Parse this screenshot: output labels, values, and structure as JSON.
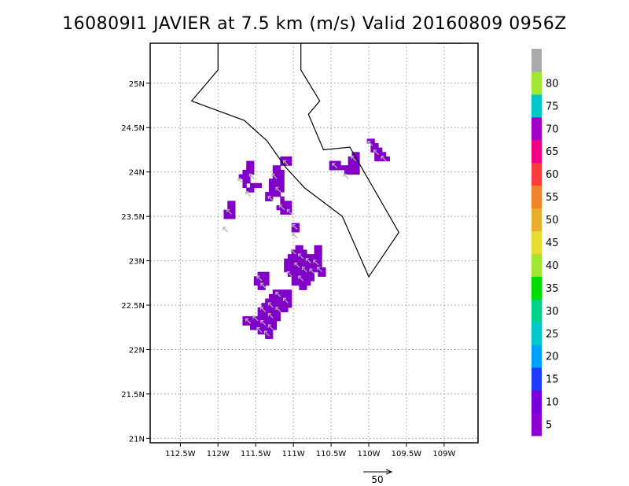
{
  "title": "160809I1 JAVIER at 7.5 km (m/s) Valid 20160809 0956Z",
  "map": {
    "lon_range": [
      -112.9,
      -108.55
    ],
    "lat_range": [
      20.95,
      25.45
    ],
    "lon_ticks": [
      {
        "value": -112.5,
        "label": "112.5W"
      },
      {
        "value": -112.0,
        "label": "112W"
      },
      {
        "value": -111.5,
        "label": "111.5W"
      },
      {
        "value": -111.0,
        "label": "111W"
      },
      {
        "value": -110.5,
        "label": "110.5W"
      },
      {
        "value": -110.0,
        "label": "110W"
      },
      {
        "value": -109.5,
        "label": "109.5W"
      },
      {
        "value": -109.0,
        "label": "109W"
      }
    ],
    "lat_ticks": [
      {
        "value": 25.0,
        "label": "25N"
      },
      {
        "value": 24.5,
        "label": "24.5N"
      },
      {
        "value": 24.0,
        "label": "24N"
      },
      {
        "value": 23.5,
        "label": "23.5N"
      },
      {
        "value": 23.0,
        "label": "23N"
      },
      {
        "value": 22.5,
        "label": "22.5N"
      },
      {
        "value": 22.0,
        "label": "22N"
      },
      {
        "value": 21.5,
        "label": "21.5N"
      },
      {
        "value": 21.0,
        "label": "21N"
      }
    ],
    "grid": "dotted",
    "coastlines": [
      [
        [
          -112.0,
          25.45
        ],
        [
          -112.0,
          25.15
        ],
        [
          -112.35,
          24.8
        ],
        [
          -111.65,
          24.58
        ],
        [
          -111.35,
          24.35
        ],
        [
          -111.1,
          24.05
        ],
        [
          -110.85,
          23.82
        ],
        [
          -110.35,
          23.5
        ],
        [
          -110.0,
          22.82
        ],
        [
          -109.6,
          23.32
        ],
        [
          -110.25,
          24.28
        ],
        [
          -110.6,
          24.25
        ],
        [
          -110.8,
          24.65
        ],
        [
          -110.65,
          24.8
        ],
        [
          -110.9,
          25.15
        ],
        [
          -110.9,
          25.45
        ]
      ],
      [
        [
          -109.1,
          25.45
        ],
        [
          -108.75,
          25.45
        ]
      ]
    ]
  },
  "wind_cells": {
    "cell_deg": 0.05,
    "color": "#8000c8",
    "cells": [
      [
        -111.85,
        23.65
      ],
      [
        -111.8,
        23.65
      ],
      [
        -111.85,
        23.6
      ],
      [
        -111.8,
        23.6
      ],
      [
        -111.9,
        23.55
      ],
      [
        -111.85,
        23.55
      ],
      [
        -111.8,
        23.55
      ],
      [
        -111.9,
        23.5
      ],
      [
        -111.85,
        23.5
      ],
      [
        -111.8,
        23.5
      ],
      [
        -111.6,
        24.1
      ],
      [
        -111.55,
        24.1
      ],
      [
        -111.6,
        24.05
      ],
      [
        -111.55,
        24.05
      ],
      [
        -111.65,
        24.0
      ],
      [
        -111.6,
        24.0
      ],
      [
        -111.55,
        24.0
      ],
      [
        -111.7,
        23.95
      ],
      [
        -111.65,
        23.95
      ],
      [
        -111.6,
        23.95
      ],
      [
        -111.65,
        23.9
      ],
      [
        -111.6,
        23.9
      ],
      [
        -111.55,
        23.85
      ],
      [
        -111.5,
        23.85
      ],
      [
        -111.45,
        23.85
      ],
      [
        -111.65,
        23.85
      ],
      [
        -111.6,
        23.8
      ],
      [
        -111.55,
        23.8
      ],
      [
        -111.25,
        24.05
      ],
      [
        -111.2,
        24.05
      ],
      [
        -111.25,
        24.0
      ],
      [
        -111.2,
        24.0
      ],
      [
        -111.15,
        24.0
      ],
      [
        -111.25,
        23.95
      ],
      [
        -111.2,
        23.95
      ],
      [
        -111.15,
        23.95
      ],
      [
        -111.3,
        23.9
      ],
      [
        -111.25,
        23.9
      ],
      [
        -111.2,
        23.9
      ],
      [
        -111.15,
        23.9
      ],
      [
        -111.3,
        23.85
      ],
      [
        -111.25,
        23.85
      ],
      [
        -111.2,
        23.85
      ],
      [
        -111.15,
        23.85
      ],
      [
        -111.3,
        23.8
      ],
      [
        -111.25,
        23.8
      ],
      [
        -111.2,
        23.8
      ],
      [
        -111.15,
        23.8
      ],
      [
        -111.35,
        23.75
      ],
      [
        -111.3,
        23.75
      ],
      [
        -111.25,
        23.75
      ],
      [
        -111.2,
        23.75
      ],
      [
        -111.35,
        23.7
      ],
      [
        -111.3,
        23.7
      ],
      [
        -111.15,
        23.7
      ],
      [
        -111.15,
        23.65
      ],
      [
        -111.1,
        23.65
      ],
      [
        -111.05,
        23.65
      ],
      [
        -111.2,
        23.6
      ],
      [
        -111.15,
        23.6
      ],
      [
        -111.1,
        23.6
      ],
      [
        -111.05,
        23.6
      ],
      [
        -111.15,
        23.55
      ],
      [
        -111.1,
        23.55
      ],
      [
        -111.05,
        23.55
      ],
      [
        -111.15,
        24.15
      ],
      [
        -111.1,
        24.15
      ],
      [
        -111.05,
        24.15
      ],
      [
        -111.15,
        24.1
      ],
      [
        -111.1,
        24.1
      ],
      [
        -111.05,
        24.1
      ],
      [
        -111.0,
        23.4
      ],
      [
        -110.95,
        23.4
      ],
      [
        -111.0,
        23.35
      ],
      [
        -110.95,
        23.35
      ],
      [
        -110.5,
        24.1
      ],
      [
        -110.45,
        24.1
      ],
      [
        -110.4,
        24.1
      ],
      [
        -110.5,
        24.05
      ],
      [
        -110.45,
        24.05
      ],
      [
        -110.4,
        24.05
      ],
      [
        -110.35,
        24.05
      ],
      [
        -110.2,
        24.2
      ],
      [
        -110.15,
        24.2
      ],
      [
        -110.25,
        24.15
      ],
      [
        -110.2,
        24.15
      ],
      [
        -110.15,
        24.15
      ],
      [
        -110.25,
        24.1
      ],
      [
        -110.2,
        24.1
      ],
      [
        -110.15,
        24.1
      ],
      [
        -110.3,
        24.05
      ],
      [
        -110.25,
        24.05
      ],
      [
        -110.2,
        24.05
      ],
      [
        -110.15,
        24.05
      ],
      [
        -110.3,
        24.0
      ],
      [
        -110.25,
        24.0
      ],
      [
        -110.2,
        24.0
      ],
      [
        -110.15,
        24.0
      ],
      [
        -110.0,
        24.35
      ],
      [
        -109.95,
        24.35
      ],
      [
        -109.95,
        24.3
      ],
      [
        -109.9,
        24.3
      ],
      [
        -109.95,
        24.25
      ],
      [
        -109.9,
        24.25
      ],
      [
        -109.85,
        24.25
      ],
      [
        -109.9,
        24.2
      ],
      [
        -109.85,
        24.2
      ],
      [
        -109.8,
        24.2
      ],
      [
        -109.9,
        24.15
      ],
      [
        -109.85,
        24.15
      ],
      [
        -109.8,
        24.15
      ],
      [
        -109.75,
        24.15
      ],
      [
        -110.95,
        23.15
      ],
      [
        -110.9,
        23.15
      ],
      [
        -110.7,
        23.15
      ],
      [
        -110.65,
        23.15
      ],
      [
        -111.0,
        23.1
      ],
      [
        -110.95,
        23.1
      ],
      [
        -110.9,
        23.1
      ],
      [
        -110.85,
        23.1
      ],
      [
        -110.7,
        23.1
      ],
      [
        -110.65,
        23.1
      ],
      [
        -111.05,
        23.05
      ],
      [
        -111.0,
        23.05
      ],
      [
        -110.95,
        23.05
      ],
      [
        -110.9,
        23.05
      ],
      [
        -110.85,
        23.05
      ],
      [
        -110.8,
        23.05
      ],
      [
        -110.75,
        23.05
      ],
      [
        -110.7,
        23.05
      ],
      [
        -110.65,
        23.05
      ],
      [
        -111.1,
        23.0
      ],
      [
        -111.05,
        23.0
      ],
      [
        -111.0,
        23.0
      ],
      [
        -110.95,
        23.0
      ],
      [
        -110.9,
        23.0
      ],
      [
        -110.85,
        23.0
      ],
      [
        -110.8,
        23.0
      ],
      [
        -110.75,
        23.0
      ],
      [
        -110.7,
        23.0
      ],
      [
        -110.65,
        23.0
      ],
      [
        -111.1,
        22.95
      ],
      [
        -111.05,
        22.95
      ],
      [
        -111.0,
        22.95
      ],
      [
        -110.95,
        22.95
      ],
      [
        -110.9,
        22.95
      ],
      [
        -110.85,
        22.95
      ],
      [
        -110.8,
        22.95
      ],
      [
        -110.75,
        22.95
      ],
      [
        -110.7,
        22.95
      ],
      [
        -110.65,
        22.95
      ],
      [
        -111.1,
        22.9
      ],
      [
        -111.05,
        22.9
      ],
      [
        -111.0,
        22.9
      ],
      [
        -110.95,
        22.9
      ],
      [
        -110.9,
        22.9
      ],
      [
        -110.85,
        22.9
      ],
      [
        -110.8,
        22.9
      ],
      [
        -110.75,
        22.9
      ],
      [
        -110.7,
        22.9
      ],
      [
        -110.65,
        22.9
      ],
      [
        -110.6,
        22.9
      ],
      [
        -111.05,
        22.85
      ],
      [
        -111.0,
        22.85
      ],
      [
        -110.95,
        22.85
      ],
      [
        -110.9,
        22.85
      ],
      [
        -110.85,
        22.85
      ],
      [
        -110.8,
        22.85
      ],
      [
        -110.75,
        22.85
      ],
      [
        -110.65,
        22.85
      ],
      [
        -110.6,
        22.85
      ],
      [
        -111.0,
        22.8
      ],
      [
        -110.95,
        22.8
      ],
      [
        -110.9,
        22.8
      ],
      [
        -110.85,
        22.8
      ],
      [
        -110.8,
        22.8
      ],
      [
        -110.75,
        22.8
      ],
      [
        -111.0,
        22.75
      ],
      [
        -110.95,
        22.75
      ],
      [
        -110.9,
        22.75
      ],
      [
        -110.85,
        22.75
      ],
      [
        -110.8,
        22.75
      ],
      [
        -110.9,
        22.7
      ],
      [
        -110.85,
        22.7
      ],
      [
        -111.45,
        22.85
      ],
      [
        -111.4,
        22.85
      ],
      [
        -111.35,
        22.85
      ],
      [
        -111.5,
        22.8
      ],
      [
        -111.45,
        22.8
      ],
      [
        -111.4,
        22.8
      ],
      [
        -111.35,
        22.8
      ],
      [
        -111.5,
        22.75
      ],
      [
        -111.45,
        22.75
      ],
      [
        -111.4,
        22.75
      ],
      [
        -111.35,
        22.75
      ],
      [
        -111.45,
        22.7
      ],
      [
        -111.4,
        22.7
      ],
      [
        -111.25,
        22.65
      ],
      [
        -111.2,
        22.65
      ],
      [
        -111.15,
        22.65
      ],
      [
        -111.1,
        22.65
      ],
      [
        -111.05,
        22.65
      ],
      [
        -111.3,
        22.6
      ],
      [
        -111.25,
        22.6
      ],
      [
        -111.2,
        22.6
      ],
      [
        -111.15,
        22.6
      ],
      [
        -111.1,
        22.6
      ],
      [
        -111.05,
        22.6
      ],
      [
        -111.35,
        22.55
      ],
      [
        -111.3,
        22.55
      ],
      [
        -111.25,
        22.55
      ],
      [
        -111.2,
        22.55
      ],
      [
        -111.15,
        22.55
      ],
      [
        -111.1,
        22.55
      ],
      [
        -111.05,
        22.55
      ],
      [
        -111.4,
        22.5
      ],
      [
        -111.35,
        22.5
      ],
      [
        -111.3,
        22.5
      ],
      [
        -111.25,
        22.5
      ],
      [
        -111.2,
        22.5
      ],
      [
        -111.15,
        22.5
      ],
      [
        -111.1,
        22.5
      ],
      [
        -111.05,
        22.5
      ],
      [
        -111.45,
        22.45
      ],
      [
        -111.4,
        22.45
      ],
      [
        -111.35,
        22.45
      ],
      [
        -111.3,
        22.45
      ],
      [
        -111.25,
        22.45
      ],
      [
        -111.2,
        22.45
      ],
      [
        -111.15,
        22.45
      ],
      [
        -111.1,
        22.45
      ],
      [
        -111.45,
        22.4
      ],
      [
        -111.4,
        22.4
      ],
      [
        -111.35,
        22.4
      ],
      [
        -111.3,
        22.4
      ],
      [
        -111.25,
        22.4
      ],
      [
        -111.2,
        22.4
      ],
      [
        -111.65,
        22.35
      ],
      [
        -111.6,
        22.35
      ],
      [
        -111.55,
        22.35
      ],
      [
        -111.5,
        22.35
      ],
      [
        -111.45,
        22.35
      ],
      [
        -111.4,
        22.35
      ],
      [
        -111.35,
        22.35
      ],
      [
        -111.3,
        22.35
      ],
      [
        -111.25,
        22.35
      ],
      [
        -111.2,
        22.35
      ],
      [
        -111.65,
        22.3
      ],
      [
        -111.6,
        22.3
      ],
      [
        -111.55,
        22.3
      ],
      [
        -111.5,
        22.3
      ],
      [
        -111.45,
        22.3
      ],
      [
        -111.4,
        22.3
      ],
      [
        -111.35,
        22.3
      ],
      [
        -111.3,
        22.3
      ],
      [
        -111.25,
        22.3
      ],
      [
        -111.55,
        22.25
      ],
      [
        -111.5,
        22.25
      ],
      [
        -111.45,
        22.25
      ],
      [
        -111.4,
        22.25
      ],
      [
        -111.35,
        22.25
      ],
      [
        -111.3,
        22.25
      ],
      [
        -111.25,
        22.25
      ],
      [
        -111.45,
        22.2
      ],
      [
        -111.4,
        22.2
      ],
      [
        -111.35,
        22.2
      ],
      [
        -111.3,
        22.2
      ],
      [
        -111.35,
        22.15
      ],
      [
        -111.3,
        22.15
      ]
    ]
  },
  "wind_arrows": [
    [
      -111.85,
      23.55
    ],
    [
      -111.9,
      23.35
    ],
    [
      -111.55,
      23.95
    ],
    [
      -111.7,
      23.9
    ],
    [
      -111.6,
      23.75
    ],
    [
      -111.25,
      23.95
    ],
    [
      -111.2,
      23.8
    ],
    [
      -111.3,
      23.7
    ],
    [
      -111.1,
      24.1
    ],
    [
      -111.15,
      23.6
    ],
    [
      -111.05,
      23.55
    ],
    [
      -110.98,
      23.38
    ],
    [
      -110.98,
      23.28
    ],
    [
      -110.45,
      24.07
    ],
    [
      -110.2,
      24.15
    ],
    [
      -110.3,
      23.95
    ],
    [
      -109.98,
      24.32
    ],
    [
      -109.9,
      24.22
    ],
    [
      -109.8,
      24.15
    ],
    [
      -111.0,
      23.1
    ],
    [
      -110.9,
      23.05
    ],
    [
      -110.8,
      23.0
    ],
    [
      -110.7,
      22.98
    ],
    [
      -110.95,
      22.95
    ],
    [
      -110.85,
      22.9
    ],
    [
      -110.75,
      22.88
    ],
    [
      -110.65,
      22.9
    ],
    [
      -110.9,
      22.8
    ],
    [
      -111.05,
      22.85
    ],
    [
      -111.45,
      22.8
    ],
    [
      -111.4,
      22.72
    ],
    [
      -111.2,
      22.62
    ],
    [
      -111.1,
      22.55
    ],
    [
      -111.3,
      22.5
    ],
    [
      -111.2,
      22.45
    ],
    [
      -111.4,
      22.45
    ],
    [
      -111.3,
      22.38
    ],
    [
      -111.5,
      22.35
    ],
    [
      -111.4,
      22.3
    ],
    [
      -111.6,
      22.32
    ],
    [
      -111.3,
      22.25
    ],
    [
      -111.45,
      22.22
    ],
    [
      -111.35,
      22.18
    ]
  ],
  "legend": {
    "segments": [
      {
        "color": "#8c00d2",
        "label": "5"
      },
      {
        "color": "#7800d8",
        "label": "10"
      },
      {
        "color": "#1e3cff",
        "label": "15"
      },
      {
        "color": "#00a0ff",
        "label": "20"
      },
      {
        "color": "#00c8c8",
        "label": "25"
      },
      {
        "color": "#00d28c",
        "label": "30"
      },
      {
        "color": "#00dc00",
        "label": "35"
      },
      {
        "color": "#a0e632",
        "label": "40"
      },
      {
        "color": "#e6dc32",
        "label": "45"
      },
      {
        "color": "#e6af2d",
        "label": "50"
      },
      {
        "color": "#f08228",
        "label": "55"
      },
      {
        "color": "#fa3c3c",
        "label": "60"
      },
      {
        "color": "#f00082",
        "label": "65"
      },
      {
        "color": "#a000c8",
        "label": "70"
      },
      {
        "color": "#00c8c8",
        "label": "75"
      },
      {
        "color": "#a0e632",
        "label": "80"
      },
      {
        "color": "#aaaaaa",
        "label": ""
      }
    ]
  },
  "reference_vector": {
    "label": "50"
  }
}
